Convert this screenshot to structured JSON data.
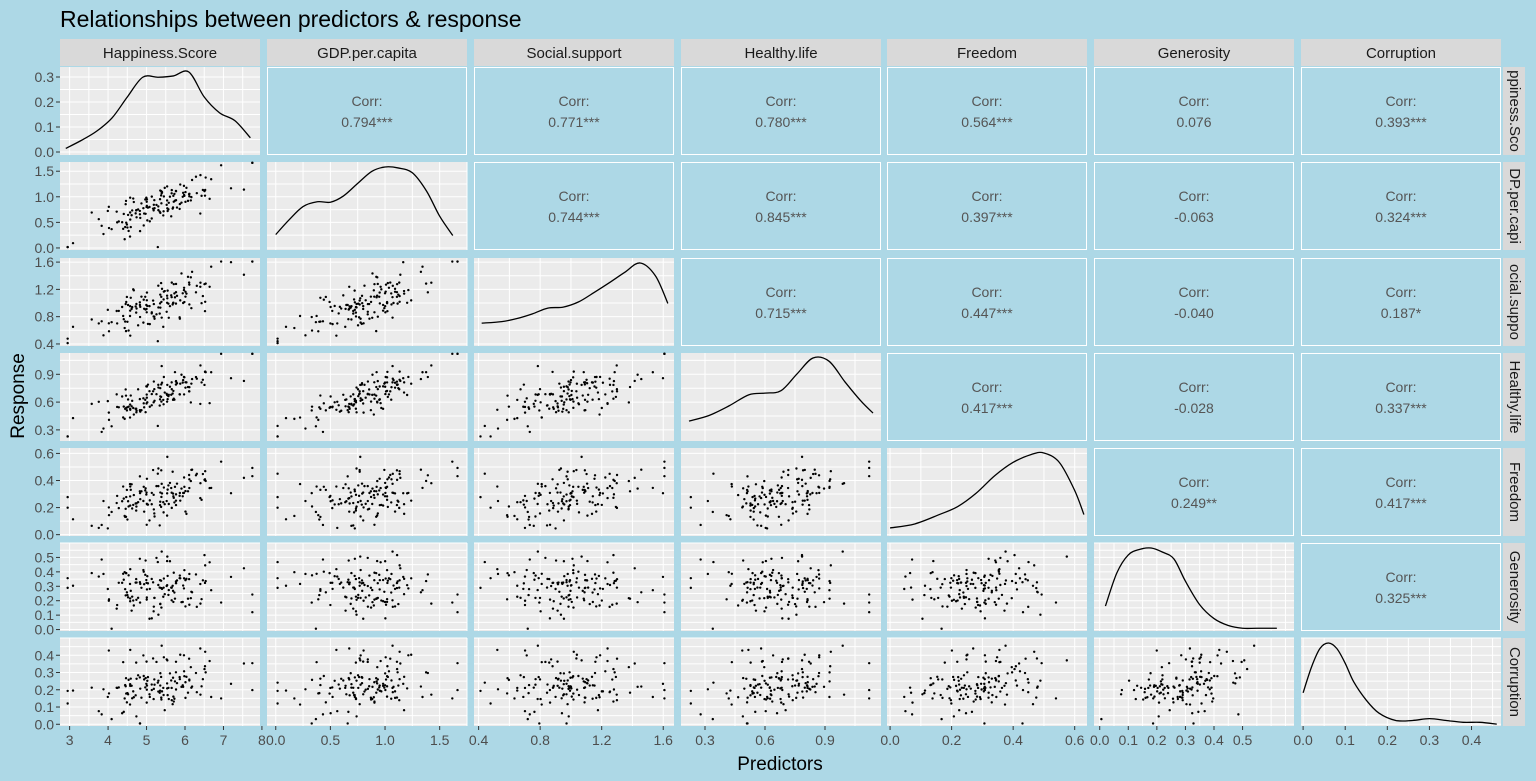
{
  "chart_data": {
    "type": "scatter",
    "subtype": "pairs-matrix",
    "title": "Relationships between predictors & response",
    "xlabel": "Predictors",
    "ylabel": "Response",
    "colors": {
      "background": "#add8e6",
      "panel": "#ebebeb",
      "strip": "#d9d9d9",
      "grid": "#ffffff",
      "ink": "#000000",
      "corr_text": "#555555"
    },
    "variables": [
      {
        "name": "Happiness.Score",
        "row_strip": "ppiness.Sco",
        "xlim": [
          2.75,
          7.95
        ],
        "x_ticks": [
          3,
          4,
          5,
          6,
          7,
          8
        ],
        "x_tick_labels": [
          "3",
          "4",
          "5",
          "6",
          "7",
          "8"
        ]
      },
      {
        "name": "GDP.per.capita",
        "row_strip": "DP.per.capi",
        "xlim": [
          -0.08,
          1.75
        ],
        "x_ticks": [
          0,
          0.5,
          1,
          1.5
        ],
        "x_tick_labels": [
          "0.0",
          "0.5",
          "1.0",
          "1.5"
        ]
      },
      {
        "name": "Social.support",
        "row_strip": "ocial.suppo",
        "xlim": [
          0.37,
          1.67
        ],
        "x_ticks": [
          0.4,
          0.8,
          1.2,
          1.6
        ],
        "x_tick_labels": [
          "0.4",
          "0.8",
          "1.2",
          "1.6"
        ]
      },
      {
        "name": "Healthy.life",
        "row_strip": "Healthy.life",
        "xlim": [
          0.18,
          1.18
        ],
        "x_ticks": [
          0.3,
          0.6,
          0.9
        ],
        "x_tick_labels": [
          "0.3",
          "0.6",
          "0.9"
        ]
      },
      {
        "name": "Freedom",
        "row_strip": "Freedom",
        "xlim": [
          -0.01,
          0.64
        ],
        "x_ticks": [
          0,
          0.2,
          0.4,
          0.6
        ],
        "x_tick_labels": [
          "0.0",
          "0.2",
          "0.4",
          "0.6"
        ]
      },
      {
        "name": "Generosity",
        "row_strip": "Generosity",
        "xlim": [
          -0.02,
          0.68
        ],
        "x_ticks": [
          0,
          0.1,
          0.2,
          0.3,
          0.4,
          0.5
        ],
        "x_tick_labels": [
          "0.0",
          "0.1",
          "0.2",
          "0.3",
          "0.4",
          "0.5"
        ]
      },
      {
        "name": "Corruption",
        "row_strip": "Corruption",
        "xlim": [
          -0.005,
          0.47
        ],
        "x_ticks": [
          0,
          0.1,
          0.2,
          0.3,
          0.4
        ],
        "x_tick_labels": [
          "0.0",
          "0.1",
          "0.2",
          "0.3",
          "0.4"
        ]
      }
    ],
    "y_axes": [
      {
        "ylim": [
          -0.012,
          0.34
        ],
        "ticks": [
          0,
          0.1,
          0.2,
          0.3
        ],
        "labels": [
          "0.0",
          "0.1",
          "0.2",
          "0.3"
        ]
      },
      {
        "ylim": [
          -0.04,
          1.68
        ],
        "ticks": [
          0,
          0.5,
          1,
          1.5
        ],
        "labels": [
          "0.0",
          "0.5",
          "1.0",
          "1.5"
        ]
      },
      {
        "ylim": [
          0.37,
          1.66
        ],
        "ticks": [
          0.4,
          0.8,
          1.2,
          1.6
        ],
        "labels": [
          "0.4",
          "0.8",
          "1.2",
          "1.6"
        ]
      },
      {
        "ylim": [
          0.18,
          1.13
        ],
        "ticks": [
          0.3,
          0.6,
          0.9
        ],
        "labels": [
          "0.3",
          "0.6",
          "0.9"
        ]
      },
      {
        "ylim": [
          -0.01,
          0.64
        ],
        "ticks": [
          0,
          0.2,
          0.4,
          0.6
        ],
        "labels": [
          "0.0",
          "0.2",
          "0.4",
          "0.6"
        ]
      },
      {
        "ylim": [
          -0.01,
          0.6
        ],
        "ticks": [
          0,
          0.1,
          0.2,
          0.3,
          0.4,
          0.5
        ],
        "labels": [
          "0.0",
          "0.1",
          "0.2",
          "0.3",
          "0.4",
          "0.5"
        ]
      },
      {
        "ylim": [
          -0.01,
          0.5
        ],
        "ticks": [
          0,
          0.1,
          0.2,
          0.3,
          0.4
        ],
        "labels": [
          "0.0",
          "0.1",
          "0.2",
          "0.3",
          "0.4"
        ]
      }
    ],
    "densities": [
      {
        "x": [
          2.9,
          3.3,
          3.7,
          4.1,
          4.5,
          4.9,
          5.3,
          5.7,
          6.1,
          6.5,
          6.9,
          7.3,
          7.7
        ],
        "y": [
          0.025,
          0.055,
          0.09,
          0.14,
          0.22,
          0.295,
          0.295,
          0.3,
          0.315,
          0.22,
          0.16,
          0.13,
          0.065
        ]
      },
      {
        "x": [
          0.0,
          0.12,
          0.25,
          0.38,
          0.5,
          0.62,
          0.75,
          0.88,
          1.0,
          1.12,
          1.25,
          1.38,
          1.5,
          1.62
        ],
        "y": [
          0.32,
          0.62,
          0.9,
          1.0,
          0.99,
          1.12,
          1.38,
          1.63,
          1.72,
          1.7,
          1.6,
          1.22,
          0.7,
          0.3
        ]
      },
      {
        "x": [
          0.42,
          0.55,
          0.65,
          0.75,
          0.85,
          0.95,
          1.05,
          1.15,
          1.25,
          1.35,
          1.45,
          1.55,
          1.63
        ],
        "y": [
          0.44,
          0.47,
          0.53,
          0.62,
          0.73,
          0.75,
          0.85,
          1.03,
          1.22,
          1.42,
          1.6,
          1.35,
          0.82
        ]
      },
      {
        "x": [
          0.22,
          0.32,
          0.42,
          0.52,
          0.6,
          0.68,
          0.76,
          0.84,
          0.92,
          1.0,
          1.08,
          1.14
        ],
        "y": [
          0.25,
          0.32,
          0.44,
          0.58,
          0.6,
          0.63,
          0.84,
          1.04,
          1.0,
          0.74,
          0.5,
          0.35
        ]
      },
      {
        "x": [
          0.0,
          0.08,
          0.16,
          0.22,
          0.28,
          0.34,
          0.4,
          0.46,
          0.5,
          0.55,
          0.6,
          0.63
        ],
        "y": [
          0.06,
          0.09,
          0.16,
          0.22,
          0.32,
          0.45,
          0.55,
          0.61,
          0.62,
          0.55,
          0.34,
          0.16
        ]
      },
      {
        "x": [
          0.02,
          0.06,
          0.1,
          0.14,
          0.18,
          0.22,
          0.26,
          0.3,
          0.35,
          0.4,
          0.45,
          0.5,
          0.55,
          0.62
        ],
        "y": [
          0.18,
          0.42,
          0.55,
          0.59,
          0.6,
          0.57,
          0.52,
          0.36,
          0.19,
          0.09,
          0.04,
          0.02,
          0.02,
          0.02
        ]
      },
      {
        "x": [
          0.0,
          0.02,
          0.04,
          0.06,
          0.08,
          0.1,
          0.12,
          0.15,
          0.18,
          0.22,
          0.26,
          0.3,
          0.34,
          0.38,
          0.42,
          0.46
        ],
        "y": [
          0.18,
          0.32,
          0.42,
          0.45,
          0.42,
          0.34,
          0.24,
          0.14,
          0.07,
          0.03,
          0.03,
          0.04,
          0.03,
          0.02,
          0.02,
          0.01
        ]
      }
    ],
    "correlations": [
      {
        "row": 0,
        "col": 1,
        "label": "Corr:",
        "value": "0.794***"
      },
      {
        "row": 0,
        "col": 2,
        "label": "Corr:",
        "value": "0.771***"
      },
      {
        "row": 0,
        "col": 3,
        "label": "Corr:",
        "value": "0.780***"
      },
      {
        "row": 0,
        "col": 4,
        "label": "Corr:",
        "value": "0.564***"
      },
      {
        "row": 0,
        "col": 5,
        "label": "Corr:",
        "value": "0.076"
      },
      {
        "row": 0,
        "col": 6,
        "label": "Corr:",
        "value": "0.393***"
      },
      {
        "row": 1,
        "col": 2,
        "label": "Corr:",
        "value": "0.744***"
      },
      {
        "row": 1,
        "col": 3,
        "label": "Corr:",
        "value": "0.845***"
      },
      {
        "row": 1,
        "col": 4,
        "label": "Corr:",
        "value": "0.397***"
      },
      {
        "row": 1,
        "col": 5,
        "label": "Corr:",
        "value": "-0.063"
      },
      {
        "row": 1,
        "col": 6,
        "label": "Corr:",
        "value": "0.324***"
      },
      {
        "row": 2,
        "col": 3,
        "label": "Corr:",
        "value": "0.715***"
      },
      {
        "row": 2,
        "col": 4,
        "label": "Corr:",
        "value": "0.447***"
      },
      {
        "row": 2,
        "col": 5,
        "label": "Corr:",
        "value": "-0.040"
      },
      {
        "row": 2,
        "col": 6,
        "label": "Corr:",
        "value": "0.187*"
      },
      {
        "row": 3,
        "col": 4,
        "label": "Corr:",
        "value": "0.417***"
      },
      {
        "row": 3,
        "col": 5,
        "label": "Corr:",
        "value": "-0.028"
      },
      {
        "row": 3,
        "col": 6,
        "label": "Corr:",
        "value": "0.337***"
      },
      {
        "row": 4,
        "col": 5,
        "label": "Corr:",
        "value": "0.249**"
      },
      {
        "row": 4,
        "col": 6,
        "label": "Corr:",
        "value": "0.417***"
      },
      {
        "row": 5,
        "col": 6,
        "label": "Corr:",
        "value": "0.325***"
      }
    ],
    "scatter": {
      "n": 140,
      "seed": 7,
      "marginal_ranges": [
        [
          2.9,
          7.8
        ],
        [
          0.0,
          1.68
        ],
        [
          0.4,
          1.62
        ],
        [
          0.22,
          1.13
        ],
        [
          0.0,
          0.62
        ],
        [
          0.0,
          0.58
        ],
        [
          0.0,
          0.46
        ]
      ],
      "correlation_values": [
        [
          1,
          0.794,
          0.771,
          0.78,
          0.564,
          0.076,
          0.393
        ],
        [
          0.794,
          1,
          0.744,
          0.845,
          0.397,
          -0.063,
          0.324
        ],
        [
          0.771,
          0.744,
          1,
          0.715,
          0.447,
          -0.04,
          0.187
        ],
        [
          0.78,
          0.845,
          0.715,
          1,
          0.417,
          -0.028,
          0.337
        ],
        [
          0.564,
          0.397,
          0.447,
          0.417,
          1,
          0.249,
          0.417
        ],
        [
          0.076,
          -0.063,
          -0.04,
          -0.028,
          0.249,
          1,
          0.325
        ],
        [
          0.393,
          0.324,
          0.187,
          0.337,
          0.417,
          0.325,
          1
        ]
      ]
    }
  }
}
